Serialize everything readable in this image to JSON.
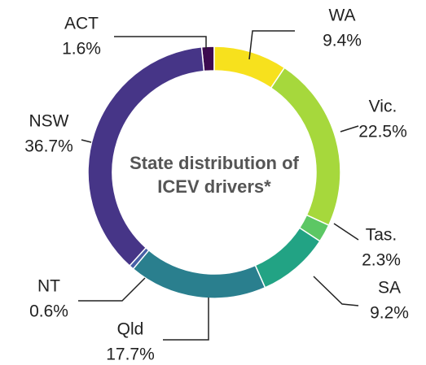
{
  "chart_data": {
    "type": "donut",
    "title": "State distribution of ICEV drivers*",
    "categories": [
      "ACT",
      "WA",
      "Vic.",
      "Tas.",
      "SA",
      "Qld",
      "NT",
      "NSW"
    ],
    "values": [
      1.6,
      9.4,
      22.5,
      2.3,
      9.2,
      17.7,
      0.6,
      36.7
    ],
    "value_labels": [
      "1.6%",
      "9.4%",
      "22.5%",
      "2.3%",
      "9.2%",
      "17.7%",
      "0.6%",
      "36.7%"
    ],
    "colors": [
      "#3d0b50",
      "#f7e11d",
      "#a6d83c",
      "#5cc764",
      "#22a384",
      "#2a7f8e",
      "#4860a6",
      "#463587"
    ]
  }
}
